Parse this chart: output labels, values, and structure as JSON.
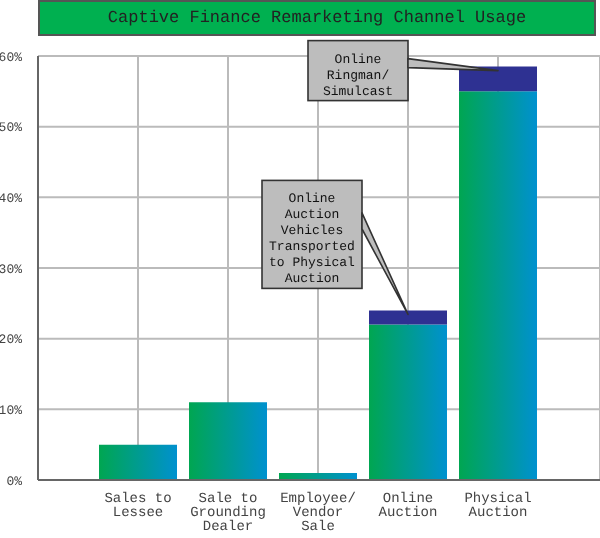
{
  "chart_data": {
    "type": "bar",
    "title": "Captive Finance Remarketing Channel Usage",
    "categories": [
      "Sales to Lessee",
      "Sale to Grounding Dealer",
      "Employee/ Vendor Sale",
      "Online Auction",
      "Physical Auction"
    ],
    "stacked": true,
    "series": [
      {
        "color": "#00a651",
        "values": [
          5,
          11,
          1,
          22,
          55
        ]
      },
      {
        "color": "#2e3192",
        "values": [
          null,
          null,
          null,
          2,
          3.5
        ]
      }
    ],
    "ylim": [
      0,
      60
    ],
    "yticks": [
      {
        "value": 0,
        "label": "0%"
      },
      {
        "value": 10,
        "label": "10%"
      },
      {
        "value": 20,
        "label": "20%"
      },
      {
        "value": 30,
        "label": "30%"
      },
      {
        "value": 40,
        "label": "40%"
      },
      {
        "value": 50,
        "label": "50%"
      },
      {
        "value": 60,
        "label": "60%"
      }
    ],
    "grid": true,
    "legend": false,
    "annotations": [
      {
        "text": "Online Auction Vehicles Transported to Physical Auction",
        "x": "Online Auction",
        "y": 24
      },
      {
        "text": "Online Ringman/ Simulcast",
        "x": "Physical Auction",
        "y": 58.5
      }
    ]
  }
}
